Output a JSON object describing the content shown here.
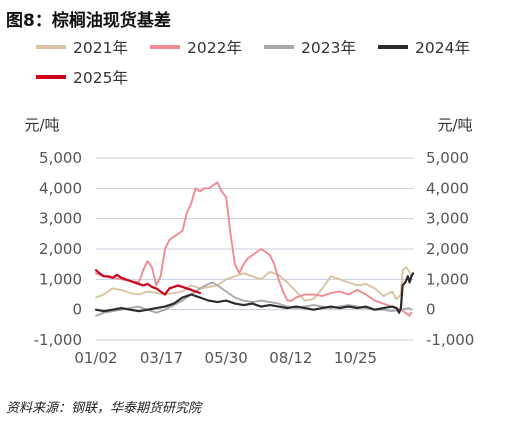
{
  "title": "图8：棕榈油现货基差",
  "source": "资料来源：钢联，华泰期货研究院",
  "chart_data": {
    "type": "line",
    "title": "图8：棕榈油现货基差",
    "ylabel_left": "元/吨",
    "ylabel_right": "元/吨",
    "ylim": [
      -1000,
      5000
    ],
    "yticks": [
      -1000,
      0,
      1000,
      2000,
      3000,
      4000,
      5000
    ],
    "ytick_labels": [
      "-1,000",
      "0",
      "1,000",
      "2,000",
      "3,000",
      "4,000",
      "5,000"
    ],
    "xlim": [
      1,
      365
    ],
    "xticks": [
      1,
      76,
      150,
      224,
      298
    ],
    "xtick_labels": [
      "01/02",
      "03/17",
      "05/30",
      "08/12",
      "10/25"
    ],
    "grid": "horizontal",
    "legend_position": "top",
    "series": [
      {
        "name": "2021年",
        "color": "#d8c3a5",
        "points": [
          [
            1,
            400
          ],
          [
            10,
            500
          ],
          [
            20,
            700
          ],
          [
            30,
            650
          ],
          [
            40,
            550
          ],
          [
            50,
            500
          ],
          [
            60,
            600
          ],
          [
            70,
            550
          ],
          [
            80,
            500
          ],
          [
            90,
            550
          ],
          [
            100,
            600
          ],
          [
            110,
            800
          ],
          [
            120,
            700
          ],
          [
            130,
            750
          ],
          [
            140,
            800
          ],
          [
            150,
            1000
          ],
          [
            160,
            1100
          ],
          [
            170,
            1200
          ],
          [
            180,
            1100
          ],
          [
            190,
            1000
          ],
          [
            200,
            1250
          ],
          [
            210,
            1150
          ],
          [
            220,
            900
          ],
          [
            230,
            600
          ],
          [
            240,
            300
          ],
          [
            250,
            350
          ],
          [
            260,
            700
          ],
          [
            270,
            1100
          ],
          [
            280,
            1000
          ],
          [
            290,
            900
          ],
          [
            300,
            800
          ],
          [
            310,
            850
          ],
          [
            320,
            700
          ],
          [
            330,
            450
          ],
          [
            340,
            600
          ],
          [
            345,
            350
          ],
          [
            350,
            500
          ],
          [
            352,
            1300
          ],
          [
            356,
            1400
          ],
          [
            360,
            1250
          ],
          [
            362,
            1100
          ]
        ]
      },
      {
        "name": "2022年",
        "color": "#f08a94",
        "points": [
          [
            1,
            1200
          ],
          [
            10,
            1100
          ],
          [
            20,
            1050
          ],
          [
            30,
            1000
          ],
          [
            40,
            950
          ],
          [
            50,
            900
          ],
          [
            55,
            1300
          ],
          [
            60,
            1600
          ],
          [
            65,
            1400
          ],
          [
            70,
            800
          ],
          [
            75,
            1100
          ],
          [
            80,
            2000
          ],
          [
            85,
            2300
          ],
          [
            90,
            2400
          ],
          [
            95,
            2500
          ],
          [
            100,
            2600
          ],
          [
            105,
            3200
          ],
          [
            110,
            3500
          ],
          [
            115,
            4000
          ],
          [
            120,
            3900
          ],
          [
            125,
            4000
          ],
          [
            130,
            4000
          ],
          [
            135,
            4100
          ],
          [
            140,
            4200
          ],
          [
            145,
            3900
          ],
          [
            150,
            3700
          ],
          [
            155,
            2500
          ],
          [
            160,
            1500
          ],
          [
            165,
            1200
          ],
          [
            170,
            1500
          ],
          [
            175,
            1700
          ],
          [
            180,
            1800
          ],
          [
            185,
            1900
          ],
          [
            190,
            2000
          ],
          [
            195,
            1900
          ],
          [
            200,
            1800
          ],
          [
            205,
            1500
          ],
          [
            210,
            1000
          ],
          [
            215,
            600
          ],
          [
            220,
            300
          ],
          [
            225,
            300
          ],
          [
            230,
            400
          ],
          [
            240,
            500
          ],
          [
            250,
            500
          ],
          [
            260,
            450
          ],
          [
            270,
            550
          ],
          [
            280,
            600
          ],
          [
            290,
            500
          ],
          [
            300,
            650
          ],
          [
            310,
            500
          ],
          [
            320,
            300
          ],
          [
            330,
            200
          ],
          [
            340,
            100
          ],
          [
            350,
            0
          ],
          [
            355,
            -100
          ],
          [
            360,
            -200
          ],
          [
            362,
            -100
          ]
        ]
      },
      {
        "name": "2023年",
        "color": "#a9a9a9",
        "points": [
          [
            1,
            -200
          ],
          [
            10,
            -100
          ],
          [
            20,
            -50
          ],
          [
            30,
            0
          ],
          [
            40,
            50
          ],
          [
            50,
            100
          ],
          [
            60,
            0
          ],
          [
            70,
            -100
          ],
          [
            80,
            0
          ],
          [
            90,
            150
          ],
          [
            100,
            300
          ],
          [
            110,
            500
          ],
          [
            120,
            700
          ],
          [
            130,
            850
          ],
          [
            135,
            900
          ],
          [
            140,
            800
          ],
          [
            150,
            600
          ],
          [
            160,
            400
          ],
          [
            170,
            300
          ],
          [
            180,
            250
          ],
          [
            190,
            300
          ],
          [
            200,
            250
          ],
          [
            210,
            200
          ],
          [
            220,
            100
          ],
          [
            230,
            50
          ],
          [
            240,
            100
          ],
          [
            250,
            150
          ],
          [
            260,
            100
          ],
          [
            270,
            50
          ],
          [
            280,
            100
          ],
          [
            290,
            150
          ],
          [
            300,
            100
          ],
          [
            310,
            50
          ],
          [
            320,
            0
          ],
          [
            330,
            0
          ],
          [
            340,
            -50
          ],
          [
            350,
            0
          ],
          [
            360,
            50
          ],
          [
            362,
            0
          ]
        ]
      },
      {
        "name": "2024年",
        "color": "#2b2b2b",
        "points": [
          [
            1,
            0
          ],
          [
            10,
            -50
          ],
          [
            20,
            0
          ],
          [
            30,
            50
          ],
          [
            40,
            0
          ],
          [
            50,
            -50
          ],
          [
            60,
            0
          ],
          [
            70,
            50
          ],
          [
            80,
            100
          ],
          [
            90,
            200
          ],
          [
            100,
            400
          ],
          [
            110,
            500
          ],
          [
            120,
            400
          ],
          [
            130,
            300
          ],
          [
            140,
            250
          ],
          [
            150,
            300
          ],
          [
            160,
            200
          ],
          [
            170,
            150
          ],
          [
            180,
            200
          ],
          [
            190,
            100
          ],
          [
            200,
            150
          ],
          [
            210,
            100
          ],
          [
            220,
            50
          ],
          [
            230,
            100
          ],
          [
            240,
            50
          ],
          [
            250,
            0
          ],
          [
            260,
            50
          ],
          [
            270,
            100
          ],
          [
            280,
            50
          ],
          [
            290,
            100
          ],
          [
            300,
            50
          ],
          [
            310,
            100
          ],
          [
            320,
            0
          ],
          [
            330,
            50
          ],
          [
            340,
            100
          ],
          [
            345,
            50
          ],
          [
            348,
            -100
          ],
          [
            350,
            50
          ],
          [
            352,
            800
          ],
          [
            355,
            900
          ],
          [
            358,
            1100
          ],
          [
            360,
            900
          ],
          [
            362,
            1100
          ],
          [
            364,
            1200
          ]
        ]
      },
      {
        "name": "2025年",
        "color": "#d0021b",
        "points": [
          [
            1,
            1300
          ],
          [
            5,
            1200
          ],
          [
            10,
            1100
          ],
          [
            15,
            1100
          ],
          [
            20,
            1050
          ],
          [
            25,
            1150
          ],
          [
            30,
            1050
          ],
          [
            35,
            1000
          ],
          [
            40,
            950
          ],
          [
            45,
            900
          ],
          [
            50,
            850
          ],
          [
            55,
            800
          ],
          [
            60,
            850
          ],
          [
            65,
            750
          ],
          [
            70,
            700
          ],
          [
            75,
            600
          ],
          [
            80,
            500
          ],
          [
            85,
            700
          ],
          [
            90,
            750
          ],
          [
            95,
            800
          ],
          [
            100,
            750
          ],
          [
            105,
            700
          ],
          [
            110,
            650
          ],
          [
            115,
            600
          ],
          [
            120,
            550
          ]
        ]
      }
    ]
  }
}
